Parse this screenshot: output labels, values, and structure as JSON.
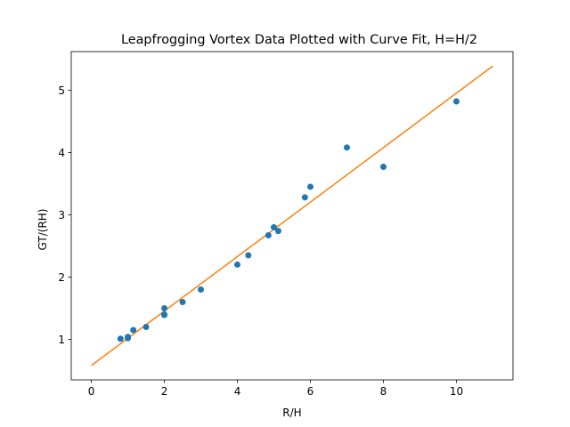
{
  "chart_data": {
    "type": "scatter",
    "title": "Leapfrogging Vortex Data Plotted with Curve Fit, H=H/2",
    "xlabel": "R/H",
    "ylabel": "GT/(RH)",
    "xlim": [
      -0.55,
      11.55
    ],
    "ylim": [
      0.35,
      5.62
    ],
    "xticks": [
      0,
      2,
      4,
      6,
      8,
      10
    ],
    "yticks": [
      1,
      2,
      3,
      4,
      5
    ],
    "grid": false,
    "series": [
      {
        "kind": "points",
        "color": "#1f77b4",
        "x": [
          0.8,
          1.0,
          1.0,
          1.15,
          1.5,
          2.0,
          2.0,
          2.0,
          2.5,
          3.0,
          4.0,
          4.3,
          4.85,
          5.0,
          5.12,
          5.85,
          6.0,
          7.0,
          8.0,
          10.0
        ],
        "y": [
          1.01,
          1.02,
          1.04,
          1.15,
          1.2,
          1.5,
          1.4,
          1.39,
          1.6,
          1.8,
          2.2,
          2.35,
          2.67,
          2.8,
          2.74,
          3.28,
          3.45,
          4.08,
          3.77,
          4.82
        ]
      },
      {
        "kind": "fit-line",
        "color": "#ff7f0e",
        "x": [
          0,
          11
        ],
        "y": [
          0.58,
          5.39
        ]
      }
    ]
  }
}
